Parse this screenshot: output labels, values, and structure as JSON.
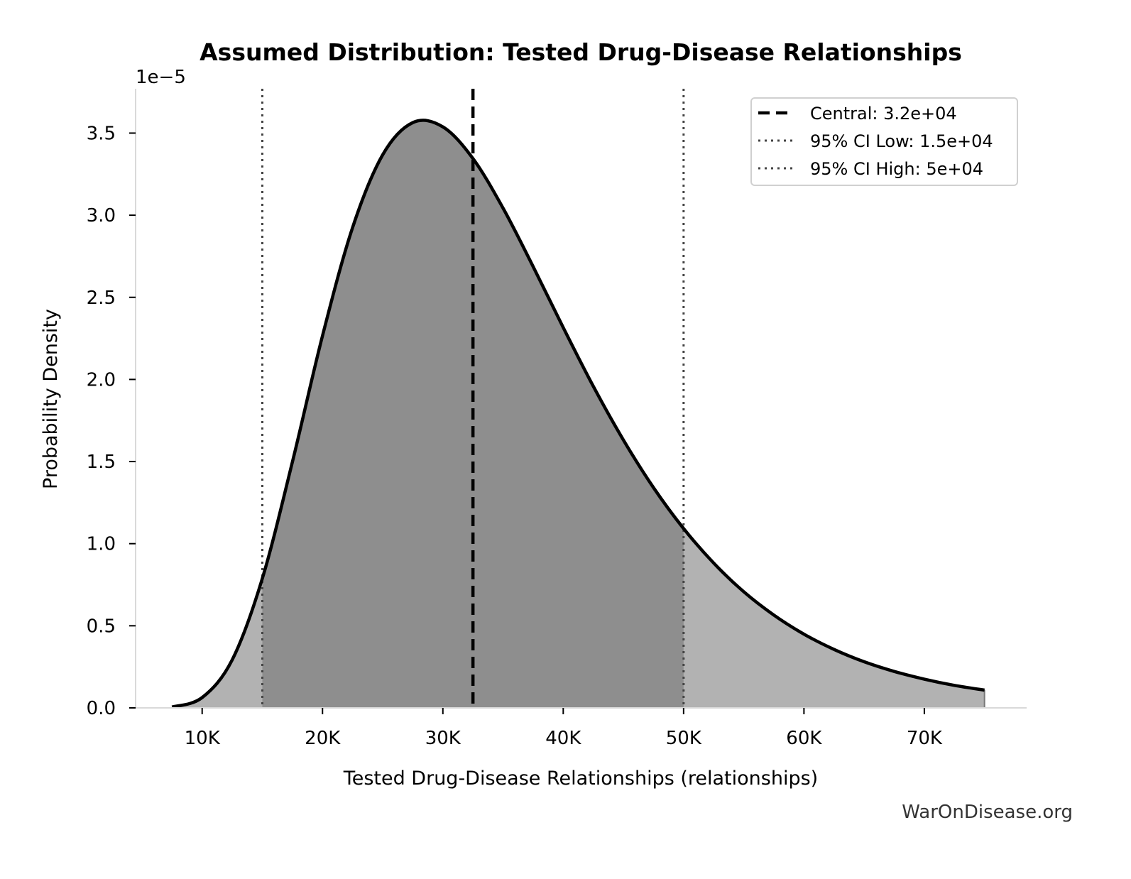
{
  "chart_data": {
    "type": "area",
    "title": "Assumed Distribution: Tested Drug-Disease Relationships",
    "xlabel": "Tested Drug-Disease Relationships (relationships)",
    "ylabel": "Probability Density",
    "y_offset_label": "1e−5",
    "xlim": [
      4000,
      78500
    ],
    "ylim": [
      0,
      3.77
    ],
    "y_scale_factor": 1e-05,
    "x_ticks": [
      {
        "value": 10000,
        "label": "10K"
      },
      {
        "value": 20000,
        "label": "20K"
      },
      {
        "value": 30000,
        "label": "30K"
      },
      {
        "value": 40000,
        "label": "40K"
      },
      {
        "value": 50000,
        "label": "50K"
      },
      {
        "value": 60000,
        "label": "60K"
      },
      {
        "value": 70000,
        "label": "70K"
      }
    ],
    "y_ticks": [
      {
        "value": 0.0,
        "label": "0.0"
      },
      {
        "value": 0.5,
        "label": "0.5"
      },
      {
        "value": 1.0,
        "label": "1.0"
      },
      {
        "value": 1.5,
        "label": "1.5"
      },
      {
        "value": 2.0,
        "label": "2.0"
      },
      {
        "value": 2.5,
        "label": "2.5"
      },
      {
        "value": 3.0,
        "label": "3.0"
      },
      {
        "value": 3.5,
        "label": "3.5"
      }
    ],
    "grid": false,
    "legend_position": "top-right",
    "x": [
      7500,
      10000,
      12500,
      15000,
      17500,
      20000,
      22500,
      25000,
      27500,
      30000,
      32500,
      35000,
      37500,
      40000,
      42500,
      45000,
      47500,
      50000,
      52500,
      55000,
      57500,
      60000,
      62500,
      65000,
      67500,
      70000,
      72500,
      75000
    ],
    "y": [
      0.005,
      0.063,
      0.293,
      0.788,
      1.498,
      2.266,
      2.925,
      3.368,
      3.564,
      3.538,
      3.345,
      3.043,
      2.687,
      2.316,
      1.958,
      1.631,
      1.341,
      1.092,
      0.882,
      0.707,
      0.565,
      0.449,
      0.356,
      0.281,
      0.222,
      0.175,
      0.137,
      0.108
    ],
    "shaded_interval": [
      15000,
      50000
    ],
    "reference_lines": [
      {
        "name": "Central: 3.2e+04",
        "x": 32500,
        "style": "dashed",
        "color": "#000000"
      },
      {
        "name": "95% CI Low: 1.5e+04",
        "x": 15000,
        "style": "dotted",
        "color": "#444444"
      },
      {
        "name": "95% CI High: 5e+04",
        "x": 50000,
        "style": "dotted",
        "color": "#444444"
      }
    ],
    "colors": {
      "curve": "#000000",
      "fill_outer": "#b2b2b2",
      "fill_ci": "#8e8e8e",
      "spine": "#d9d9d9"
    }
  },
  "watermark": "WarOnDisease.org"
}
